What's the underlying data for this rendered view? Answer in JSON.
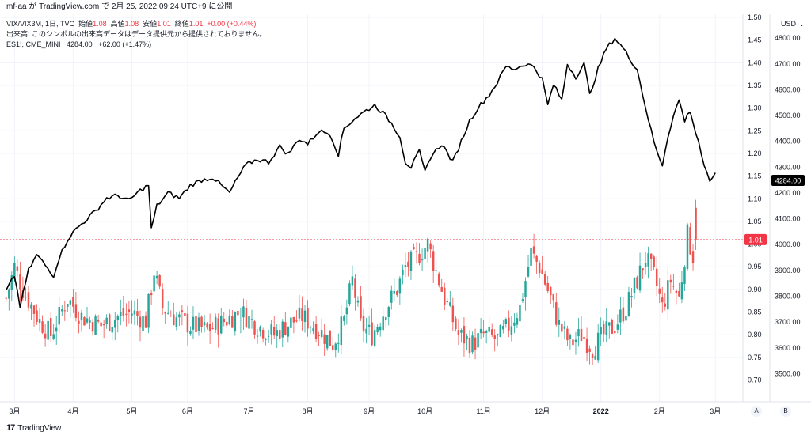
{
  "header": {
    "published": "mf-aa が TradingView.com で 2月 25, 2022 09:24 UTC+9 に公開"
  },
  "legend": {
    "symbol1": "VIX/VIX3M, 1日, TVC",
    "open_label": "始値",
    "open": "1.08",
    "high_label": "高値",
    "high": "1.08",
    "low_label": "安値",
    "low": "1.01",
    "close_label": "終値",
    "close": "1.01",
    "change": "+0.00 (+0.44%)",
    "volume_note": "出来高: このシンボルの出来高データはデータ提供元から提供されておりません。",
    "symbol2": "ES1!, CME_MINI",
    "symbol2_value": "4284.00",
    "symbol2_change": "+62.00 (+1.47%)"
  },
  "colors": {
    "up": "#26a69a",
    "down": "#ef5350",
    "line": "#000000",
    "grid": "#f0f3fa",
    "price_label": "#f23645"
  },
  "badges": {
    "es_last": "4284.00",
    "ratio_last": "1.01",
    "currency": "USD"
  },
  "axis_buttons": {
    "a": "A",
    "b": "B"
  },
  "footer": {
    "brand": "TradingView",
    "logo_mark": "17"
  },
  "chart_data": [
    {
      "type": "candlestick",
      "name": "VIX/VIX3M",
      "axis": "left-scale (inner)",
      "ylim": [
        0.68,
        1.5
      ],
      "yticks": [
        0.7,
        0.75,
        0.8,
        0.85,
        0.9,
        0.95,
        1.0,
        1.05,
        1.1,
        1.15,
        1.2,
        1.25,
        1.3,
        1.35,
        1.4,
        1.45,
        1.5
      ],
      "x_labels": [
        "3月",
        "4月",
        "5月",
        "6月",
        "7月",
        "8月",
        "9月",
        "10月",
        "11月",
        "12月",
        "2022",
        "2月",
        "3月"
      ],
      "keypoints_close": [
        [
          0,
          0.88
        ],
        [
          3,
          0.95
        ],
        [
          6,
          0.9
        ],
        [
          12,
          0.83
        ],
        [
          16,
          0.8
        ],
        [
          22,
          0.88
        ],
        [
          27,
          0.84
        ],
        [
          34,
          0.82
        ],
        [
          40,
          0.84
        ],
        [
          45,
          0.85
        ],
        [
          50,
          0.83
        ],
        [
          53,
          0.94
        ],
        [
          56,
          0.86
        ],
        [
          60,
          0.84
        ],
        [
          66,
          0.82
        ],
        [
          72,
          0.81
        ],
        [
          78,
          0.83
        ],
        [
          84,
          0.85
        ],
        [
          90,
          0.82
        ],
        [
          96,
          0.8
        ],
        [
          100,
          0.82
        ],
        [
          106,
          0.84
        ],
        [
          112,
          0.81
        ],
        [
          117,
          0.78
        ],
        [
          121,
          0.83
        ],
        [
          124,
          0.92
        ],
        [
          127,
          0.82
        ],
        [
          131,
          0.8
        ],
        [
          136,
          0.86
        ],
        [
          140,
          0.9
        ],
        [
          143,
          0.95
        ],
        [
          147,
          0.97
        ],
        [
          151,
          1.0
        ],
        [
          154,
          0.94
        ],
        [
          157,
          0.88
        ],
        [
          162,
          0.8
        ],
        [
          167,
          0.78
        ],
        [
          171,
          0.8
        ],
        [
          176,
          0.79
        ],
        [
          180,
          0.82
        ],
        [
          184,
          0.86
        ],
        [
          188,
          0.98
        ],
        [
          191,
          0.95
        ],
        [
          195,
          0.88
        ],
        [
          198,
          0.82
        ],
        [
          202,
          0.78
        ],
        [
          206,
          0.8
        ],
        [
          210,
          0.77
        ],
        [
          214,
          0.8
        ],
        [
          218,
          0.82
        ],
        [
          222,
          0.86
        ],
        [
          226,
          0.92
        ],
        [
          229,
          0.97
        ],
        [
          232,
          0.93
        ],
        [
          235,
          0.86
        ],
        [
          238,
          0.92
        ],
        [
          241,
          0.88
        ],
        [
          244,
          1.02
        ],
        [
          247,
          0.95
        ]
      ],
      "last": {
        "open": 1.08,
        "high": 1.08,
        "low": 1.01,
        "close": 1.01,
        "change": "+0.00 (+0.44%)"
      }
    },
    {
      "type": "line",
      "name": "ES1!, CME_MINI",
      "axis": "right",
      "unit": "USD",
      "ylim": [
        3440,
        4880
      ],
      "yticks": [
        3500,
        3600,
        3700,
        3800,
        3900,
        4000,
        4100,
        4200,
        4300,
        4400,
        4500,
        4600,
        4700,
        4800
      ],
      "keypoints": [
        [
          0,
          3820
        ],
        [
          3,
          3880
        ],
        [
          5,
          3760
        ],
        [
          8,
          3900
        ],
        [
          11,
          3960
        ],
        [
          14,
          3920
        ],
        [
          17,
          3880
        ],
        [
          19,
          3950
        ],
        [
          22,
          4020
        ],
        [
          25,
          4060
        ],
        [
          28,
          4090
        ],
        [
          32,
          4130
        ],
        [
          36,
          4180
        ],
        [
          40,
          4190
        ],
        [
          44,
          4170
        ],
        [
          48,
          4210
        ],
        [
          51,
          4230
        ],
        [
          52,
          4060
        ],
        [
          54,
          4150
        ],
        [
          58,
          4200
        ],
        [
          62,
          4180
        ],
        [
          66,
          4230
        ],
        [
          70,
          4250
        ],
        [
          74,
          4260
        ],
        [
          77,
          4230
        ],
        [
          80,
          4200
        ],
        [
          83,
          4260
        ],
        [
          86,
          4310
        ],
        [
          90,
          4330
        ],
        [
          94,
          4320
        ],
        [
          98,
          4380
        ],
        [
          101,
          4350
        ],
        [
          105,
          4410
        ],
        [
          108,
          4390
        ],
        [
          112,
          4440
        ],
        [
          116,
          4430
        ],
        [
          119,
          4350
        ],
        [
          121,
          4450
        ],
        [
          125,
          4490
        ],
        [
          129,
          4520
        ],
        [
          132,
          4540
        ],
        [
          135,
          4510
        ],
        [
          138,
          4470
        ],
        [
          141,
          4420
        ],
        [
          143,
          4320
        ],
        [
          145,
          4300
        ],
        [
          148,
          4360
        ],
        [
          150,
          4280
        ],
        [
          152,
          4340
        ],
        [
          156,
          4390
        ],
        [
          160,
          4320
        ],
        [
          163,
          4400
        ],
        [
          166,
          4480
        ],
        [
          169,
          4530
        ],
        [
          173,
          4580
        ],
        [
          176,
          4630
        ],
        [
          179,
          4690
        ],
        [
          182,
          4680
        ],
        [
          186,
          4700
        ],
        [
          189,
          4690
        ],
        [
          192,
          4640
        ],
        [
          194,
          4540
        ],
        [
          196,
          4620
        ],
        [
          199,
          4560
        ],
        [
          201,
          4700
        ],
        [
          204,
          4650
        ],
        [
          207,
          4700
        ],
        [
          209,
          4580
        ],
        [
          212,
          4680
        ],
        [
          215,
          4760
        ],
        [
          218,
          4800
        ],
        [
          221,
          4760
        ],
        [
          224,
          4710
        ],
        [
          226,
          4680
        ],
        [
          228,
          4580
        ],
        [
          231,
          4440
        ],
        [
          233,
          4360
        ],
        [
          235,
          4310
        ],
        [
          237,
          4420
        ],
        [
          239,
          4500
        ],
        [
          241,
          4560
        ],
        [
          243,
          4480
        ],
        [
          245,
          4520
        ],
        [
          247,
          4430
        ],
        [
          248,
          4400
        ],
        [
          250,
          4300
        ],
        [
          252,
          4240
        ],
        [
          254,
          4284
        ]
      ],
      "last": 4284.0,
      "change": "+62.00 (+1.47%)"
    }
  ]
}
